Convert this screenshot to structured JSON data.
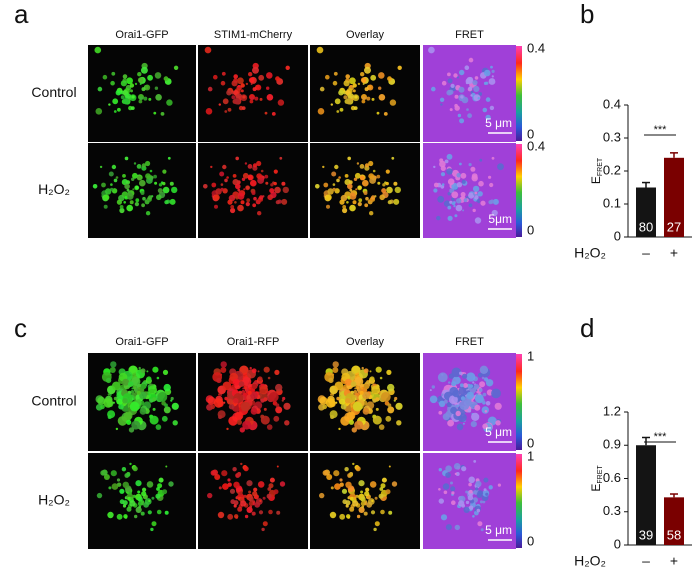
{
  "figure": {
    "panels": [
      {
        "label": "a",
        "columns": [
          "Orai1-GFP",
          "STIM1-mCherry",
          "Overlay",
          "FRET"
        ],
        "rows": [
          "Control",
          "H₂O₂"
        ],
        "colorbar_ticks": [
          [
            0.4,
            0
          ],
          [
            0.4,
            0
          ]
        ],
        "scale_bars": [
          "5 μm",
          "5μm"
        ]
      },
      {
        "label": "c",
        "columns": [
          "Orai1-GFP",
          "Orai1-RFP",
          "Overlay",
          "FRET"
        ],
        "rows": [
          "Control",
          "H₂O₂"
        ],
        "colorbar_ticks": [
          [
            1,
            0
          ],
          [
            1,
            0
          ]
        ],
        "scale_bars": [
          "5 μm",
          "5 μm"
        ]
      }
    ]
  },
  "chart_data": [
    {
      "type": "bar",
      "panel_label": "b",
      "ylabel": "E",
      "ylabel_sub": "FRET",
      "xlabel": "H₂O₂",
      "categories": [
        "–",
        "+"
      ],
      "values": [
        0.15,
        0.24
      ],
      "errors": [
        0.015,
        0.015
      ],
      "n": [
        80,
        27
      ],
      "colors": [
        "#141414",
        "#7a0000"
      ],
      "ylim": [
        0,
        0.4
      ],
      "yticks": [
        0,
        0.1,
        0.2,
        0.3,
        0.4
      ],
      "significance": "***"
    },
    {
      "type": "bar",
      "panel_label": "d",
      "ylabel": "E",
      "ylabel_sub": "FRET",
      "xlabel": "H₂O₂",
      "categories": [
        "–",
        "+"
      ],
      "values": [
        0.9,
        0.43
      ],
      "errors": [
        0.07,
        0.03
      ],
      "n": [
        39,
        58
      ],
      "colors": [
        "#141414",
        "#7a0000"
      ],
      "ylim": [
        0,
        1.2
      ],
      "yticks": [
        0,
        0.3,
        0.6,
        0.9,
        1.2
      ],
      "significance": "***"
    }
  ]
}
